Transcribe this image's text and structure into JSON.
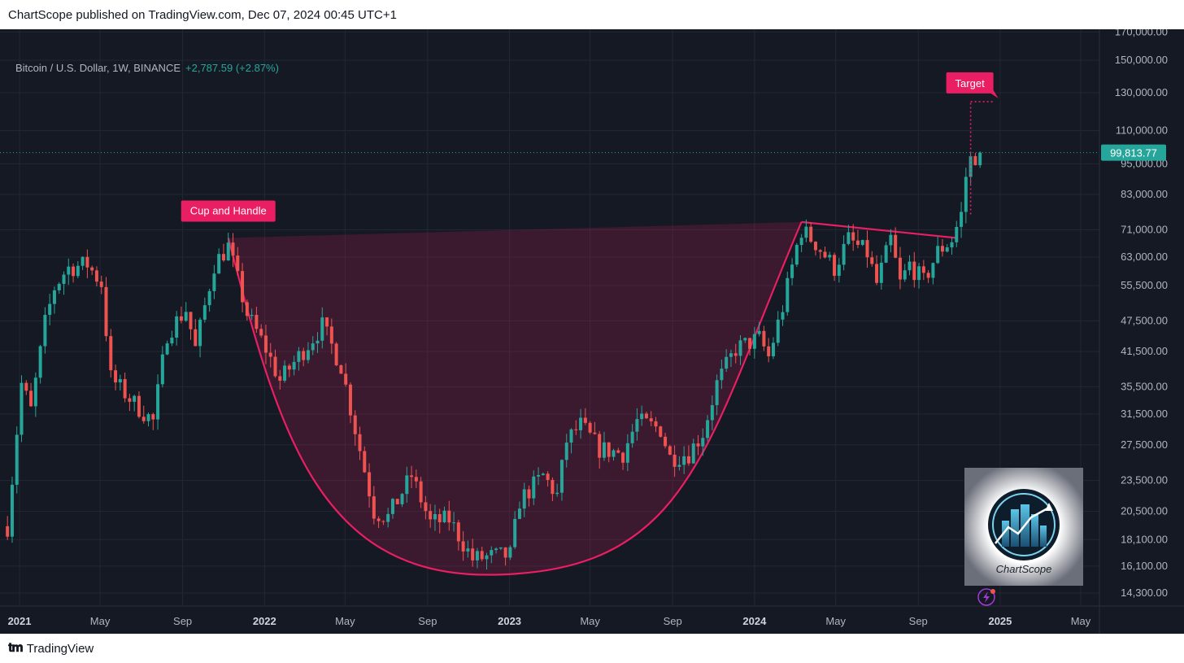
{
  "header": {
    "publish_text": "ChartScope published on TradingView.com, Dec 07, 2024 00:45 UTC+1"
  },
  "legend": {
    "symbol": "Bitcoin / U.S. Dollar, 1W, BINANCE",
    "change": "+2,787.59 (+2.87%)"
  },
  "footer": {
    "logo_text": "TradingView"
  },
  "colors": {
    "up": "#26a69a",
    "down": "#ef5350",
    "pattern": "#e91e63",
    "background": "#151924"
  },
  "chart_data": {
    "type": "candlestick",
    "scale": "log",
    "timeframe": "1W",
    "current_price": "99,813.77",
    "ylim": [
      13500,
      172000
    ],
    "y_ticks": [
      {
        "value": 170000,
        "label": "170,000.00"
      },
      {
        "value": 150000,
        "label": "150,000.00"
      },
      {
        "value": 130000,
        "label": "130,000.00"
      },
      {
        "value": 110000,
        "label": "110,000.00"
      },
      {
        "value": 95000,
        "label": "95,000.00"
      },
      {
        "value": 83000,
        "label": "83,000.00"
      },
      {
        "value": 71000,
        "label": "71,000.00"
      },
      {
        "value": 63000,
        "label": "63,000.00"
      },
      {
        "value": 55500,
        "label": "55,500.00"
      },
      {
        "value": 47500,
        "label": "47,500.00"
      },
      {
        "value": 41500,
        "label": "41,500.00"
      },
      {
        "value": 35500,
        "label": "35,500.00"
      },
      {
        "value": 31500,
        "label": "31,500.00"
      },
      {
        "value": 27500,
        "label": "27,500.00"
      },
      {
        "value": 23500,
        "label": "23,500.00"
      },
      {
        "value": 20500,
        "label": "20,500.00"
      },
      {
        "value": 18100,
        "label": "18,100.00"
      },
      {
        "value": 16100,
        "label": "16,100.00"
      },
      {
        "value": 14300,
        "label": "14,300.00"
      }
    ],
    "x_ticks": [
      {
        "date": "2021-01-01",
        "label": "2021",
        "bold": true
      },
      {
        "date": "2021-05-01",
        "label": "May",
        "bold": false
      },
      {
        "date": "2021-09-01",
        "label": "Sep",
        "bold": false
      },
      {
        "date": "2022-01-01",
        "label": "2022",
        "bold": true
      },
      {
        "date": "2022-05-01",
        "label": "May",
        "bold": false
      },
      {
        "date": "2022-09-01",
        "label": "Sep",
        "bold": false
      },
      {
        "date": "2023-01-01",
        "label": "2023",
        "bold": true
      },
      {
        "date": "2023-05-01",
        "label": "May",
        "bold": false
      },
      {
        "date": "2023-09-01",
        "label": "Sep",
        "bold": false
      },
      {
        "date": "2024-01-01",
        "label": "2024",
        "bold": true
      },
      {
        "date": "2024-05-01",
        "label": "May",
        "bold": false
      },
      {
        "date": "2024-09-01",
        "label": "Sep",
        "bold": false
      },
      {
        "date": "2025-01-01",
        "label": "2025",
        "bold": true
      },
      {
        "date": "2025-05-01",
        "label": "May",
        "bold": false
      }
    ],
    "xlim": [
      "2020-12-15",
      "2025-06-10"
    ],
    "candle_anchors": [
      {
        "date": "2020-12-14",
        "price": 19200
      },
      {
        "date": "2021-01-04",
        "price": 36000
      },
      {
        "date": "2021-01-18",
        "price": 32000
      },
      {
        "date": "2021-02-08",
        "price": 47000
      },
      {
        "date": "2021-02-22",
        "price": 55000
      },
      {
        "date": "2021-03-13",
        "price": 60000
      },
      {
        "date": "2021-04-12",
        "price": 61000
      },
      {
        "date": "2021-05-03",
        "price": 56000
      },
      {
        "date": "2021-05-17",
        "price": 37000
      },
      {
        "date": "2021-06-21",
        "price": 33000
      },
      {
        "date": "2021-07-19",
        "price": 30500
      },
      {
        "date": "2021-08-09",
        "price": 45000
      },
      {
        "date": "2021-09-06",
        "price": 50000
      },
      {
        "date": "2021-09-20",
        "price": 42000
      },
      {
        "date": "2021-10-18",
        "price": 61000
      },
      {
        "date": "2021-11-08",
        "price": 66000
      },
      {
        "date": "2021-12-06",
        "price": 49000
      },
      {
        "date": "2022-01-03",
        "price": 42000
      },
      {
        "date": "2022-01-24",
        "price": 36500
      },
      {
        "date": "2022-03-28",
        "price": 46500
      },
      {
        "date": "2022-04-25",
        "price": 39000
      },
      {
        "date": "2022-05-16",
        "price": 29500
      },
      {
        "date": "2022-06-13",
        "price": 20500
      },
      {
        "date": "2022-07-04",
        "price": 20000
      },
      {
        "date": "2022-08-08",
        "price": 24000
      },
      {
        "date": "2022-09-05",
        "price": 19500
      },
      {
        "date": "2022-10-03",
        "price": 19800
      },
      {
        "date": "2022-11-07",
        "price": 16600
      },
      {
        "date": "2022-12-05",
        "price": 16800
      },
      {
        "date": "2023-01-02",
        "price": 16900
      },
      {
        "date": "2023-01-16",
        "price": 21500
      },
      {
        "date": "2023-02-20",
        "price": 24000
      },
      {
        "date": "2023-03-13",
        "price": 22000
      },
      {
        "date": "2023-03-27",
        "price": 28000
      },
      {
        "date": "2023-04-17",
        "price": 30000
      },
      {
        "date": "2023-05-15",
        "price": 27000
      },
      {
        "date": "2023-06-19",
        "price": 26500
      },
      {
        "date": "2023-07-10",
        "price": 30500
      },
      {
        "date": "2023-08-14",
        "price": 29500
      },
      {
        "date": "2023-08-28",
        "price": 26000
      },
      {
        "date": "2023-09-25",
        "price": 26500
      },
      {
        "date": "2023-10-16",
        "price": 29000
      },
      {
        "date": "2023-11-06",
        "price": 36000
      },
      {
        "date": "2023-12-04",
        "price": 42000
      },
      {
        "date": "2024-01-08",
        "price": 44000
      },
      {
        "date": "2024-01-22",
        "price": 40500
      },
      {
        "date": "2024-02-12",
        "price": 50500
      },
      {
        "date": "2024-03-04",
        "price": 66000
      },
      {
        "date": "2024-03-11",
        "price": 71000
      },
      {
        "date": "2024-04-01",
        "price": 67000
      },
      {
        "date": "2024-04-29",
        "price": 60000
      },
      {
        "date": "2024-05-20",
        "price": 68000
      },
      {
        "date": "2024-06-17",
        "price": 64000
      },
      {
        "date": "2024-07-01",
        "price": 56000
      },
      {
        "date": "2024-07-22",
        "price": 68000
      },
      {
        "date": "2024-08-05",
        "price": 56000
      },
      {
        "date": "2024-08-19",
        "price": 61000
      },
      {
        "date": "2024-09-09",
        "price": 56500
      },
      {
        "date": "2024-09-30",
        "price": 64500
      },
      {
        "date": "2024-10-21",
        "price": 68000
      },
      {
        "date": "2024-11-04",
        "price": 76000
      },
      {
        "date": "2024-11-11",
        "price": 90000
      },
      {
        "date": "2024-11-18",
        "price": 97000
      },
      {
        "date": "2024-12-02",
        "price": 99813
      }
    ],
    "annotations": {
      "cup_handle_label": "Cup and Handle",
      "target_label": "Target",
      "rim_left": {
        "date": "2021-11-08",
        "price": 68500
      },
      "rim_right": {
        "date": "2024-03-11",
        "price": 73500
      },
      "cup_bottom": {
        "date": "2022-11-28",
        "price": 15500
      },
      "handle_end": {
        "date": "2024-10-28",
        "price": 68500
      },
      "target_price": 125000,
      "target_date": "2024-11-18"
    },
    "watermark": "ChartScope"
  }
}
